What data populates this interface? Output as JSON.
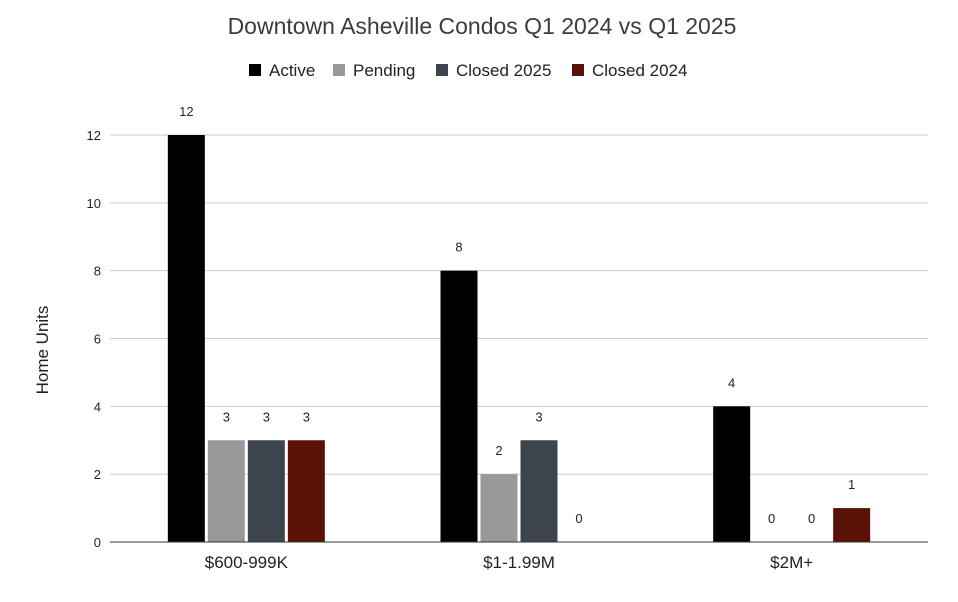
{
  "chart_data": {
    "type": "bar",
    "title": "Downtown Asheville Condos Q1 2024 vs Q1 2025",
    "xlabel": "",
    "ylabel": "Home Units",
    "ylim": [
      0,
      12
    ],
    "yticks": [
      0,
      2,
      4,
      6,
      8,
      10,
      12
    ],
    "ytick_labels": [
      "0",
      "2",
      "4",
      "6",
      "8",
      "10",
      "12"
    ],
    "grid": true,
    "legend_position": "top",
    "categories": [
      "$600-999K",
      "$1-1.99M",
      "$2M+"
    ],
    "series": [
      {
        "name": "Active",
        "color": "#000000",
        "values": [
          12,
          8,
          4
        ],
        "labels": [
          "12",
          "8",
          "4"
        ]
      },
      {
        "name": "Pending",
        "color": "#999999",
        "values": [
          3,
          2,
          0
        ],
        "labels": [
          "3",
          "2",
          "0"
        ]
      },
      {
        "name": "Closed 2025",
        "color": "#3c454d",
        "values": [
          3,
          3,
          0
        ],
        "labels": [
          "3",
          "3",
          "0"
        ]
      },
      {
        "name": "Closed 2024",
        "color": "#5a1207",
        "values": [
          3,
          0,
          1
        ],
        "labels": [
          "3",
          "0",
          "1"
        ]
      }
    ]
  }
}
